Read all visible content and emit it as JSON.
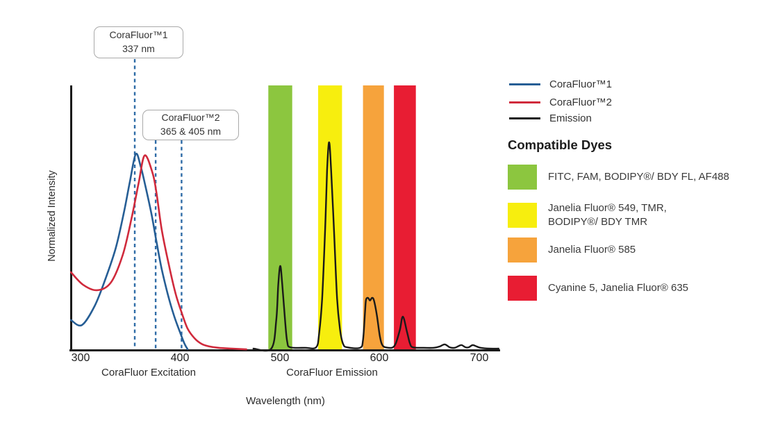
{
  "chart": {
    "y_axis_label": "Normalized Intensity",
    "x_axis_label": "Wavelength (nm)",
    "x_ticks": [
      "300",
      "400",
      "500",
      "600",
      "700"
    ],
    "x_section_labels": [
      "CoraFluor Excitation",
      "CoraFluor Emission"
    ],
    "callouts": [
      {
        "title": "CoraFluor™1",
        "subtitle": "337 nm"
      },
      {
        "title": "CoraFluor™2",
        "subtitle": "365 & 405 nm"
      }
    ],
    "guide_line_color": "#2e6ba6",
    "axis_color": "#1a1a1a"
  },
  "legend": {
    "items": [
      {
        "label": "CoraFluor™1",
        "color": "#265e95"
      },
      {
        "label": "CoraFluor™2",
        "color": "#d02a3c"
      },
      {
        "label": "Emission",
        "color": "#1a1a1a"
      }
    ],
    "dyes_heading": "Compatible Dyes",
    "dyes": [
      {
        "color": "#8cc63f",
        "lines": [
          "FITC, FAM, BODIPY®/ BDY FL, AF488"
        ]
      },
      {
        "color": "#f7ee0e",
        "lines": [
          "Janelia Fluor® 549, TMR,",
          "BODIPY®/ BDY TMR"
        ]
      },
      {
        "color": "#f6a33c",
        "lines": [
          "Janelia Fluor® 585"
        ]
      },
      {
        "color": "#e81d33",
        "lines": [
          "Cyanine 5, Janelia Fluor® 635"
        ]
      }
    ]
  },
  "chart_data": {
    "type": "line",
    "xlabel": "Wavelength (nm)",
    "ylabel": "Normalized Intensity",
    "x_ticks": [
      300,
      400,
      500,
      600,
      700
    ],
    "x_range_nm": [
      290,
      720
    ],
    "y_range": [
      0,
      1
    ],
    "grid": false,
    "legend_position": "right",
    "x_section_labels": [
      "CoraFluor Excitation",
      "CoraFluor Emission"
    ],
    "series": [
      {
        "name": "CoraFluor™1",
        "role": "excitation",
        "color": "#265e95",
        "peak_nm": 355,
        "points": [
          [
            290,
            0.112
          ],
          [
            301,
            0.093
          ],
          [
            314,
            0.167
          ],
          [
            325,
            0.272
          ],
          [
            335,
            0.385
          ],
          [
            343,
            0.517
          ],
          [
            349,
            0.633
          ],
          [
            355,
            0.74
          ],
          [
            360,
            0.693
          ],
          [
            365,
            0.614
          ],
          [
            371,
            0.509
          ],
          [
            376,
            0.404
          ],
          [
            381,
            0.306
          ],
          [
            387,
            0.212
          ],
          [
            393,
            0.133
          ],
          [
            399,
            0.07
          ],
          [
            404,
            0.022
          ],
          [
            407,
            0.002
          ]
        ]
      },
      {
        "name": "CoraFluor™2",
        "role": "excitation",
        "color": "#d02a3c",
        "peak_nm": 364,
        "points": [
          [
            290,
            0.293
          ],
          [
            302,
            0.246
          ],
          [
            316,
            0.225
          ],
          [
            330,
            0.254
          ],
          [
            342,
            0.359
          ],
          [
            351,
            0.501
          ],
          [
            358,
            0.632
          ],
          [
            364,
            0.735
          ],
          [
            372,
            0.667
          ],
          [
            376,
            0.588
          ],
          [
            381,
            0.456
          ],
          [
            388,
            0.325
          ],
          [
            395,
            0.212
          ],
          [
            401,
            0.141
          ],
          [
            407,
            0.08
          ],
          [
            414,
            0.043
          ],
          [
            421,
            0.022
          ],
          [
            428,
            0.013
          ],
          [
            438,
            0.007
          ],
          [
            452,
            0.004
          ],
          [
            466,
            0.001
          ]
        ]
      },
      {
        "name": "Emission",
        "role": "emission",
        "color": "#1a1a1a",
        "peak_nm": [
          500,
          549,
          590,
          623,
          665,
          682,
          693
        ],
        "points": [
          [
            473,
            0.004
          ],
          [
            491,
            0.004
          ],
          [
            496,
            0.114
          ],
          [
            498,
            0.246
          ],
          [
            500,
            0.317
          ],
          [
            502,
            0.246
          ],
          [
            505,
            0.101
          ],
          [
            507,
            0.03
          ],
          [
            510,
            0.009
          ],
          [
            525,
            0.007
          ],
          [
            536,
            0.009
          ],
          [
            539,
            0.062
          ],
          [
            542,
            0.193
          ],
          [
            545,
            0.456
          ],
          [
            547,
            0.68
          ],
          [
            549,
            0.785
          ],
          [
            551,
            0.68
          ],
          [
            554,
            0.443
          ],
          [
            557,
            0.193
          ],
          [
            560,
            0.075
          ],
          [
            563,
            0.022
          ],
          [
            567,
            0.009
          ],
          [
            580,
            0.007
          ],
          [
            583,
            0.036
          ],
          [
            585,
            0.141
          ],
          [
            586,
            0.188
          ],
          [
            588,
            0.196
          ],
          [
            590,
            0.186
          ],
          [
            592,
            0.196
          ],
          [
            594,
            0.186
          ],
          [
            597,
            0.128
          ],
          [
            600,
            0.049
          ],
          [
            603,
            0.014
          ],
          [
            609,
            0.007
          ],
          [
            613,
            0.009
          ],
          [
            616,
            0.025
          ],
          [
            620,
            0.075
          ],
          [
            623,
            0.125
          ],
          [
            627,
            0.07
          ],
          [
            630,
            0.025
          ],
          [
            633,
            0.009
          ],
          [
            644,
            0.007
          ],
          [
            654,
            0.007
          ],
          [
            660,
            0.012
          ],
          [
            665,
            0.02
          ],
          [
            670,
            0.009
          ],
          [
            675,
            0.007
          ],
          [
            679,
            0.014
          ],
          [
            682,
            0.017
          ],
          [
            686,
            0.009
          ],
          [
            689,
            0.009
          ],
          [
            693,
            0.017
          ],
          [
            697,
            0.012
          ],
          [
            701,
            0.007
          ],
          [
            710,
            0.004
          ],
          [
            719,
            0.004
          ]
        ]
      }
    ],
    "filter_bands": [
      {
        "dyes": "FITC, FAM, BODIPY®/ BDY FL, AF488",
        "color": "#8cc63f",
        "range_nm": [
          488,
          512
        ]
      },
      {
        "dyes": "Janelia Fluor® 549, TMR, BODIPY®/ BDY TMR",
        "color": "#f7ee0e",
        "range_nm": [
          538,
          562
        ]
      },
      {
        "dyes": "Janelia Fluor® 585",
        "color": "#f6a33c",
        "range_nm": [
          583,
          604
        ]
      },
      {
        "dyes": "Cyanine 5, Janelia Fluor® 635",
        "color": "#e81d33",
        "range_nm": [
          614,
          636
        ]
      }
    ],
    "annotations": [
      {
        "title": "CoraFluor™1",
        "subtitle": "337 nm",
        "line_x_nm": [
          354
        ]
      },
      {
        "title": "CoraFluor™2",
        "subtitle": "365 & 405 nm",
        "line_x_nm": [
          375,
          401
        ]
      }
    ]
  }
}
